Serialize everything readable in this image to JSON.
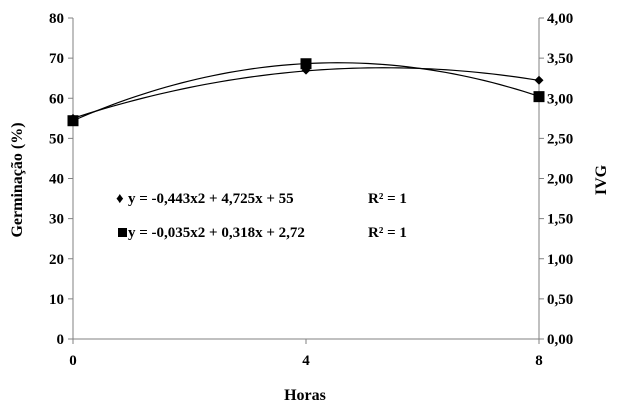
{
  "chart_data": {
    "type": "line",
    "title": "",
    "xlabel": "Horas",
    "ylabel": "Germinação (%)",
    "y2label": "IVG",
    "x": [
      0,
      4,
      8
    ],
    "xticks": [
      "0",
      "4",
      "8"
    ],
    "xlim": [
      0,
      8
    ],
    "ylim": [
      0,
      80
    ],
    "y2lim": [
      0,
      4
    ],
    "yticks": [
      "0",
      "10",
      "20",
      "30",
      "40",
      "50",
      "60",
      "70",
      "80"
    ],
    "y2ticks": [
      "0,00",
      "0,50",
      "1,00",
      "1,50",
      "2,00",
      "2,50",
      "3,00",
      "3,50",
      "4,00"
    ],
    "grid": false,
    "series": [
      {
        "marker": "diamond",
        "axis": "left",
        "values": [
          55,
          67,
          64.5
        ],
        "trend": {
          "a": -0.443,
          "b": 4.725,
          "c": 55
        },
        "equation": "y = -0,443x2 + 4,725x + 55",
        "r2": "R² = 1"
      },
      {
        "marker": "square",
        "axis": "right",
        "values": [
          2.72,
          3.43,
          3.02
        ],
        "trend": {
          "a": -0.035,
          "b": 0.318,
          "c": 2.72
        },
        "equation": "y = -0,035x2 + 0,318x + 2,72",
        "r2": "R² = 1"
      }
    ]
  }
}
